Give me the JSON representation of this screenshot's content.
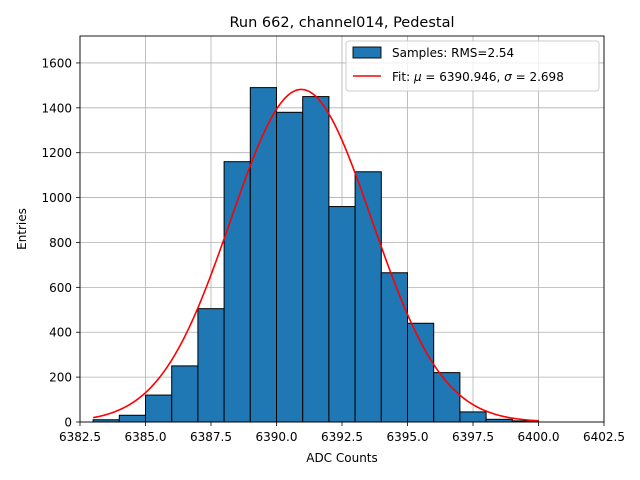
{
  "chart_data": {
    "type": "bar",
    "title": "Run 662, channel014, Pedestal",
    "xlabel": "ADC Counts",
    "ylabel": "Entries",
    "xlim": [
      6382.5,
      6402.5
    ],
    "ylim": [
      0,
      1720
    ],
    "grid": true,
    "legend_position": "top-right",
    "xticks": [
      6382.5,
      6385.0,
      6387.5,
      6390.0,
      6392.5,
      6395.0,
      6397.5,
      6400.0,
      6402.5
    ],
    "xtick_labels": [
      "6382.5",
      "6385.0",
      "6387.5",
      "6390.0",
      "6392.5",
      "6395.0",
      "6397.5",
      "6400.0",
      "6402.5"
    ],
    "yticks": [
      0,
      200,
      400,
      600,
      800,
      1000,
      1200,
      1400,
      1600
    ],
    "ytick_labels": [
      "0",
      "200",
      "400",
      "600",
      "800",
      "1000",
      "1200",
      "1400",
      "1600"
    ],
    "histogram": {
      "name": "Samples: RMS=2.54",
      "color": "#1f77b4",
      "edge_color": "#000000",
      "bins": [
        {
          "x0": 6383.0,
          "x1": 6384.0,
          "count": 10
        },
        {
          "x0": 6384.0,
          "x1": 6385.0,
          "count": 30
        },
        {
          "x0": 6385.0,
          "x1": 6386.0,
          "count": 120
        },
        {
          "x0": 6386.0,
          "x1": 6387.0,
          "count": 250
        },
        {
          "x0": 6387.0,
          "x1": 6388.0,
          "count": 505
        },
        {
          "x0": 6388.0,
          "x1": 6389.0,
          "count": 1160
        },
        {
          "x0": 6389.0,
          "x1": 6390.0,
          "count": 1490
        },
        {
          "x0": 6390.0,
          "x1": 6391.0,
          "count": 1380
        },
        {
          "x0": 6391.0,
          "x1": 6392.0,
          "count": 1450
        },
        {
          "x0": 6392.0,
          "x1": 6393.0,
          "count": 960
        },
        {
          "x0": 6393.0,
          "x1": 6394.0,
          "count": 1115
        },
        {
          "x0": 6394.0,
          "x1": 6395.0,
          "count": 665
        },
        {
          "x0": 6395.0,
          "x1": 6396.0,
          "count": 440
        },
        {
          "x0": 6396.0,
          "x1": 6397.0,
          "count": 220
        },
        {
          "x0": 6397.0,
          "x1": 6398.0,
          "count": 45
        },
        {
          "x0": 6398.0,
          "x1": 6399.0,
          "count": 12
        },
        {
          "x0": 6399.0,
          "x1": 6400.0,
          "count": 5
        }
      ]
    },
    "fit": {
      "name_prefix": "Fit: ",
      "mu_symbol": "μ",
      "mu_value": "6390.946",
      "sigma_symbol": "σ",
      "sigma_value": "2.698",
      "mu": 6390.946,
      "sigma": 2.698,
      "amplitude": 1482,
      "x_range": [
        6383.0,
        6400.0
      ],
      "color": "#ff0000"
    }
  }
}
